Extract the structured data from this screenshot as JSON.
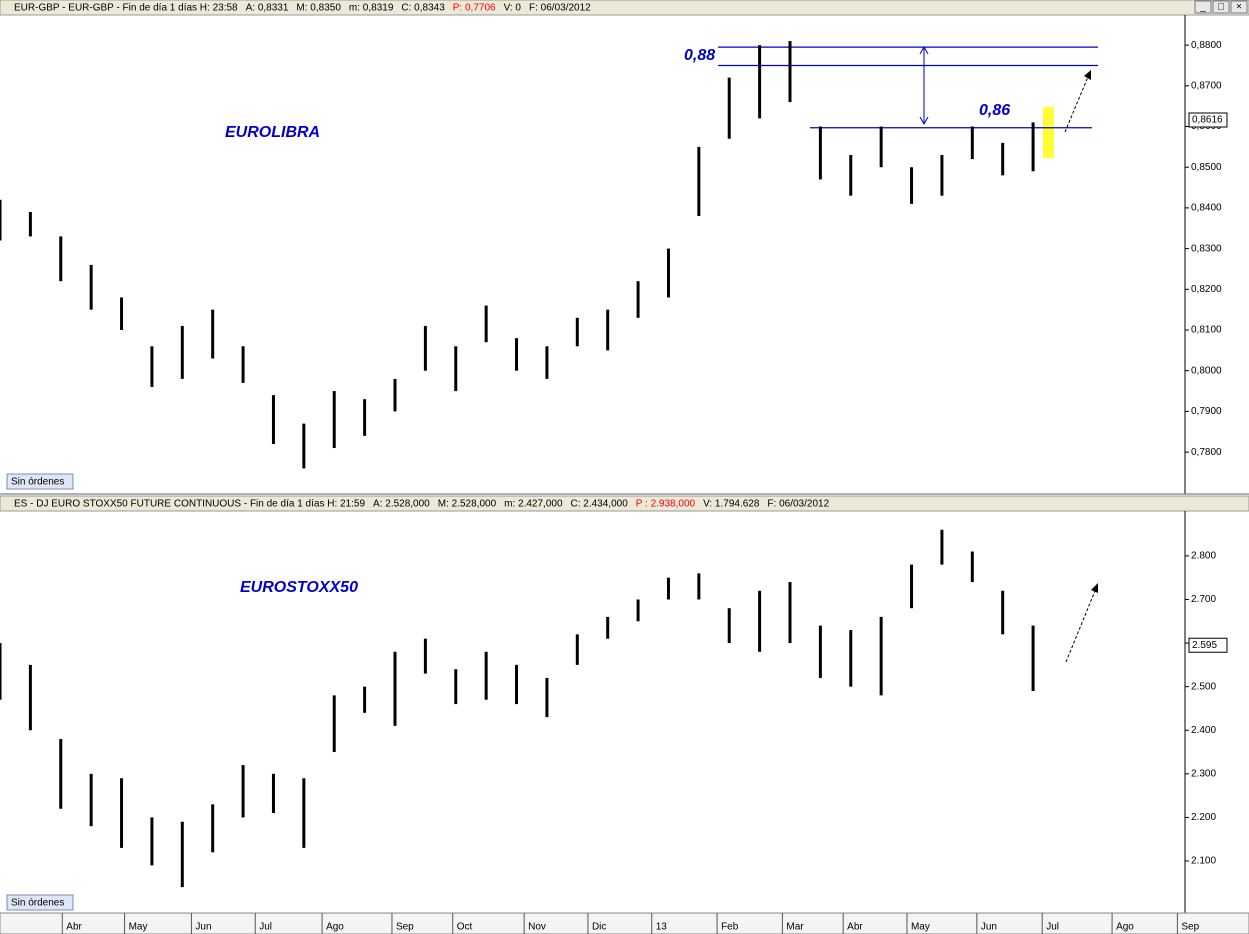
{
  "window_buttons": [
    "_",
    "□",
    "×"
  ],
  "chart_data": [
    {
      "type": "ohlc",
      "header": [
        {
          "text": "EUR-GBP - EUR-GBP - Fin de día 1 días  H: 23:58",
          "color": "#000000"
        },
        {
          "text": "A: 0,8331",
          "color": "#000000"
        },
        {
          "text": "M: 0,8350",
          "color": "#000000"
        },
        {
          "text": "m: 0,8319",
          "color": "#000000"
        },
        {
          "text": "C: 0,8343",
          "color": "#000000"
        },
        {
          "text": "P: 0,7706",
          "color": "#ff0000"
        },
        {
          "text": "V: 0",
          "color": "#000000"
        },
        {
          "text": "F: 06/03/2012",
          "color": "#000000"
        }
      ],
      "title": "EUROLIBRA",
      "annotations": [
        "0,88",
        "0,86"
      ],
      "status": "Sin órdenes",
      "color": "#000000",
      "x": [
        0,
        2,
        4,
        6,
        8,
        10,
        12,
        14,
        16,
        18,
        20,
        22,
        24,
        26,
        28,
        30,
        32,
        34,
        36,
        38,
        40,
        42,
        44,
        46,
        48,
        50,
        52,
        54,
        56,
        58,
        60,
        62,
        64,
        66,
        68
      ],
      "lows": [
        0.832,
        0.833,
        0.822,
        0.815,
        0.81,
        0.796,
        0.798,
        0.803,
        0.797,
        0.782,
        0.776,
        0.781,
        0.784,
        0.79,
        0.8,
        0.795,
        0.807,
        0.8,
        0.798,
        0.806,
        0.805,
        0.813,
        0.818,
        0.838,
        0.857,
        0.862,
        0.866,
        0.847,
        0.843,
        0.85,
        0.841,
        0.843,
        0.852,
        0.848,
        0.849
      ],
      "highs": [
        0.842,
        0.839,
        0.833,
        0.826,
        0.818,
        0.806,
        0.811,
        0.815,
        0.806,
        0.794,
        0.787,
        0.795,
        0.793,
        0.798,
        0.811,
        0.806,
        0.816,
        0.808,
        0.806,
        0.813,
        0.815,
        0.822,
        0.83,
        0.855,
        0.872,
        0.88,
        0.881,
        0.86,
        0.853,
        0.86,
        0.85,
        0.853,
        0.86,
        0.856,
        0.861
      ],
      "levels": [
        0.8795,
        0.875,
        0.8597
      ],
      "last_price": {
        "value": 0.8616,
        "label": "0,8616"
      },
      "xlim": [
        0,
        78
      ],
      "ylim": [
        0.7702,
        0.8874
      ],
      "yticks": [
        {
          "value": 0.78,
          "label": "0,7800"
        },
        {
          "value": 0.79,
          "label": "0,7900"
        },
        {
          "value": 0.8,
          "label": "0,8000"
        },
        {
          "value": 0.81,
          "label": "0,8100"
        },
        {
          "value": 0.82,
          "label": "0,8200"
        },
        {
          "value": 0.83,
          "label": "0,8300"
        },
        {
          "value": 0.84,
          "label": "0,8400"
        },
        {
          "value": 0.85,
          "label": "0,8500"
        },
        {
          "value": 0.86,
          "label": "0,8600"
        },
        {
          "value": 0.87,
          "label": "0,8700"
        },
        {
          "value": 0.88,
          "label": "0,8800"
        }
      ]
    },
    {
      "type": "ohlc",
      "header": [
        {
          "text": "ES - DJ EURO STOXX50 FUTURE CONTINUOUS - Fin de día 1 días  H: 21:59",
          "color": "#000000"
        },
        {
          "text": "A: 2.528,000",
          "color": "#000000"
        },
        {
          "text": "M: 2.528,000",
          "color": "#000000"
        },
        {
          "text": "m: 2.427,000",
          "color": "#000000"
        },
        {
          "text": "C: 2.434,000",
          "color": "#000000"
        },
        {
          "text": "P : 2.938,000",
          "color": "#ff0000"
        },
        {
          "text": "V: 1.794.628",
          "color": "#000000"
        },
        {
          "text": "F: 06/03/2012",
          "color": "#000000"
        }
      ],
      "title": "EUROSTOXX50",
      "status": "Sin órdenes",
      "color": "#000000",
      "x": [
        0,
        2,
        4,
        6,
        8,
        10,
        12,
        14,
        16,
        18,
        20,
        22,
        24,
        26,
        28,
        30,
        32,
        34,
        36,
        38,
        40,
        42,
        44,
        46,
        48,
        50,
        52,
        54,
        56,
        58,
        60,
        62,
        64,
        66,
        68
      ],
      "lows": [
        2.47,
        2.4,
        2.22,
        2.18,
        2.13,
        2.09,
        2.04,
        2.12,
        2.2,
        2.21,
        2.13,
        2.35,
        2.44,
        2.41,
        2.53,
        2.46,
        2.47,
        2.46,
        2.43,
        2.55,
        2.61,
        2.65,
        2.7,
        2.7,
        2.6,
        2.58,
        2.6,
        2.52,
        2.5,
        2.48,
        2.68,
        2.78,
        2.74,
        2.62,
        2.49
      ],
      "highs": [
        2.6,
        2.55,
        2.38,
        2.3,
        2.29,
        2.2,
        2.19,
        2.23,
        2.32,
        2.3,
        2.29,
        2.48,
        2.5,
        2.58,
        2.61,
        2.54,
        2.58,
        2.55,
        2.52,
        2.62,
        2.66,
        2.7,
        2.75,
        2.76,
        2.68,
        2.72,
        2.74,
        2.64,
        2.63,
        2.66,
        2.78,
        2.86,
        2.81,
        2.72,
        2.64
      ],
      "last_price": {
        "value": 2.595,
        "label": "2.595"
      },
      "xlim": [
        0,
        78
      ],
      "ylim": [
        1.983,
        2.903
      ],
      "yticks": [
        {
          "value": 2.1,
          "label": "2.100"
        },
        {
          "value": 2.2,
          "label": "2.200"
        },
        {
          "value": 2.3,
          "label": "2.300"
        },
        {
          "value": 2.4,
          "label": "2.400"
        },
        {
          "value": 2.5,
          "label": "2.500"
        },
        {
          "value": 2.6,
          "label": "2.600"
        },
        {
          "value": 2.7,
          "label": "2.700"
        },
        {
          "value": 2.8,
          "label": "2.800"
        }
      ],
      "xticks": [
        {
          "value": 4.1,
          "label": "Abr"
        },
        {
          "value": 8.2,
          "label": "May"
        },
        {
          "value": 12.6,
          "label": "Jun"
        },
        {
          "value": 16.8,
          "label": "Jul"
        },
        {
          "value": 21.2,
          "label": "Ago"
        },
        {
          "value": 25.8,
          "label": "Sep"
        },
        {
          "value": 29.8,
          "label": "Oct"
        },
        {
          "value": 34.5,
          "label": "Nov"
        },
        {
          "value": 38.7,
          "label": "Dic"
        },
        {
          "value": 42.9,
          "label": "13"
        },
        {
          "value": 47.2,
          "label": "Feb"
        },
        {
          "value": 51.5,
          "label": "Mar"
        },
        {
          "value": 55.5,
          "label": "Abr"
        },
        {
          "value": 59.7,
          "label": "May"
        },
        {
          "value": 64.3,
          "label": "Jun"
        },
        {
          "value": 68.6,
          "label": "Jul"
        },
        {
          "value": 73.2,
          "label": "Ago"
        },
        {
          "value": 77.5,
          "label": "Sep"
        }
      ]
    }
  ]
}
